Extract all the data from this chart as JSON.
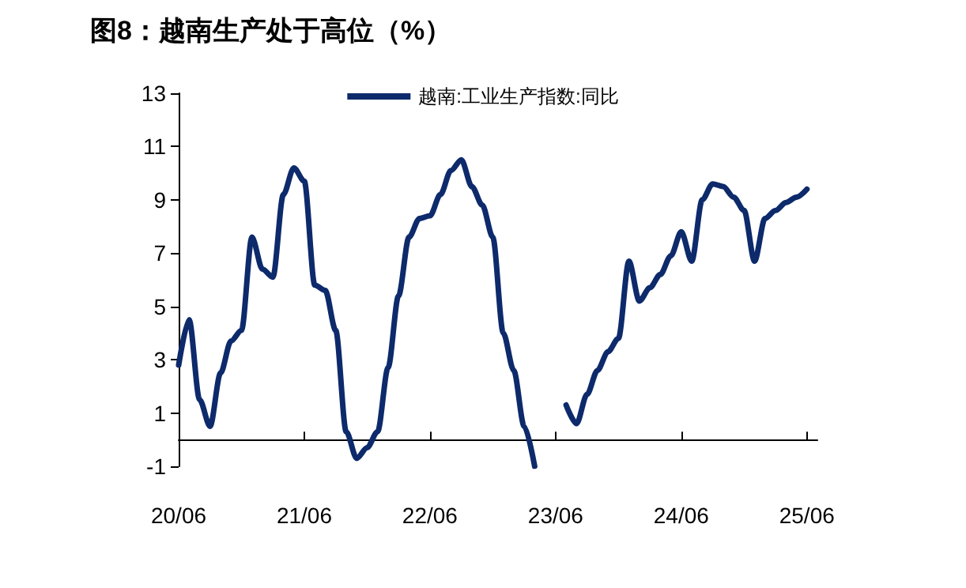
{
  "chart_data": {
    "type": "line",
    "title": "图8：越南生产处于高位（%）",
    "categories": [
      "20/06",
      null,
      null,
      null,
      null,
      null,
      null,
      null,
      null,
      null,
      null,
      null,
      "21/06",
      null,
      null,
      null,
      null,
      null,
      null,
      null,
      null,
      null,
      null,
      null,
      "22/06",
      null,
      null,
      null,
      null,
      null,
      null,
      null,
      null,
      null,
      null,
      null,
      "23/06",
      null,
      null,
      null,
      null,
      null,
      null,
      null,
      null,
      null,
      null,
      null,
      "24/06",
      null,
      null,
      null,
      null,
      null,
      null,
      null,
      null,
      null,
      null,
      null,
      "25/06",
      null
    ],
    "series": [
      {
        "name": "越南:工业生产指数:同比",
        "color": "#0d2a6b",
        "values": [
          2.8,
          4.5,
          1.5,
          0.5,
          2.5,
          3.7,
          4.1,
          7.6,
          6.4,
          6.1,
          9.2,
          10.2,
          9.7,
          5.8,
          5.6,
          4.1,
          0.3,
          -0.7,
          -0.3,
          0.3,
          2.7,
          5.4,
          7.6,
          8.3,
          8.4,
          9.2,
          10.1,
          10.5,
          9.5,
          8.8,
          7.6,
          4.0,
          2.6,
          0.5,
          -1,
          null,
          null,
          1.3,
          0.6,
          1.7,
          2.6,
          3.3,
          3.8,
          6.7,
          5.2,
          5.7,
          6.2,
          6.9,
          7.8,
          6.7,
          9.0,
          9.6,
          9.5,
          9.1,
          8.6,
          6.7,
          8.3,
          8.6,
          8.9,
          9.1,
          9.4,
          null
        ]
      }
    ],
    "ylim": [
      -1,
      13
    ],
    "yticks": [
      -1,
      1,
      3,
      5,
      7,
      9,
      11,
      13
    ],
    "grid": false,
    "legend": "top",
    "marker": "none",
    "line_style": "solid"
  }
}
